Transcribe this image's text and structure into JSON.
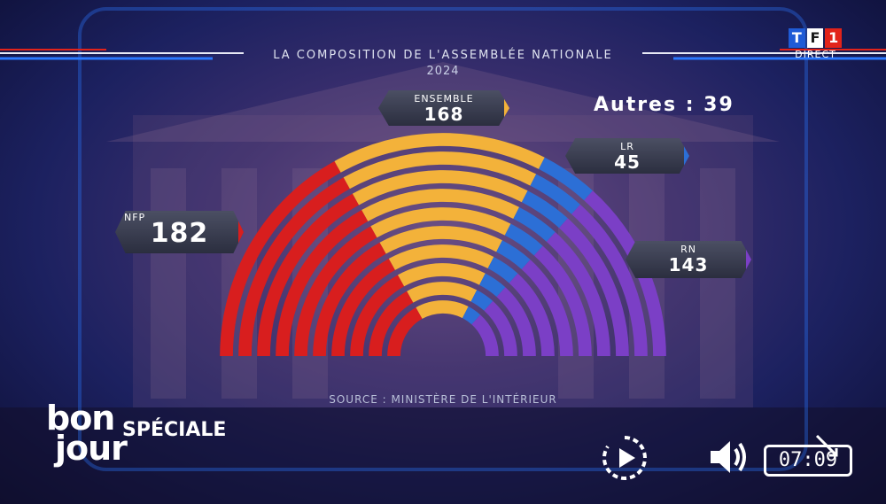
{
  "header": {
    "title": "LA COMPOSITION DE L'ASSEMBLÉE NATIONALE",
    "year": "2024"
  },
  "channel": {
    "logo_letters": [
      "T",
      "F",
      "1"
    ],
    "logo_colors": [
      "#1f5bd6",
      "#ffffff",
      "#e2231a"
    ],
    "status": "DIRECT"
  },
  "others": {
    "text": "Autres : 39"
  },
  "parties": [
    {
      "name": "NFP",
      "seats": "182",
      "color": "#d81e1e"
    },
    {
      "name": "ENSEMBLE",
      "seats": "168",
      "color": "#f3b23a"
    },
    {
      "name": "LR",
      "seats": "45",
      "color": "#2c6fd6"
    },
    {
      "name": "RN",
      "seats": "143",
      "color": "#7b3fc6"
    }
  ],
  "source": "SOURCE : MINISTÈRE DE L'INTÉRIEUR",
  "brand": {
    "line1": "bon",
    "line2": "jour",
    "tagline": "SPÉCIALE"
  },
  "player": {
    "replay_icon": "replay-icon",
    "volume_icon": "volume-icon",
    "time": "07:09",
    "cast_icon": "cast-icon"
  }
}
